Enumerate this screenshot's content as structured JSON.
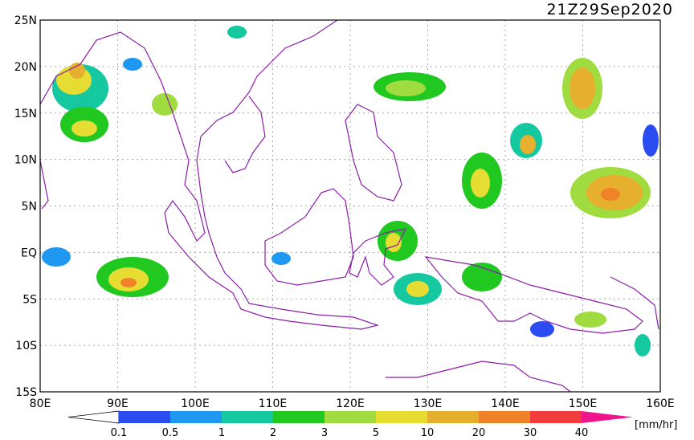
{
  "title": "21Z29Sep2020",
  "lat_labels": [
    "25N",
    "20N",
    "15N",
    "10N",
    "5N",
    "EQ",
    "5S",
    "10S",
    "15S"
  ],
  "lon_labels": [
    "80E",
    "90E",
    "100E",
    "110E",
    "120E",
    "130E",
    "140E",
    "150E",
    "160E"
  ],
  "colorbar": {
    "labels": [
      "0.1",
      "0.5",
      "1",
      "2",
      "3",
      "5",
      "10",
      "20",
      "30",
      "40"
    ],
    "colors": [
      "#ffffff",
      "#2a4cf0",
      "#1e98f0",
      "#16c8a0",
      "#20c820",
      "#a0dc40",
      "#e6dc32",
      "#e6af2d",
      "#f08228",
      "#f03c3c",
      "#f0148c"
    ],
    "unit": "[mm/hr]"
  }
}
